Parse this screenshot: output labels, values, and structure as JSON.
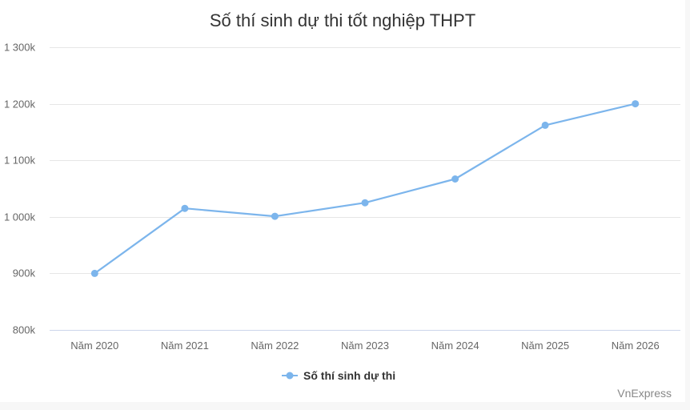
{
  "chart_data": {
    "type": "line",
    "title": "Số thí sinh dự thi tốt nghiệp THPT",
    "categories": [
      "Năm 2020",
      "Năm 2021",
      "Năm 2022",
      "Năm 2023",
      "Năm 2024",
      "Năm 2025",
      "Năm 2026"
    ],
    "series": [
      {
        "name": "Số thí sinh dự thi",
        "color": "#7cb5ec",
        "values": [
          900000,
          1015000,
          1001000,
          1025000,
          1067000,
          1162000,
          1200000
        ]
      }
    ],
    "y_ticks": [
      800000,
      900000,
      1000000,
      1100000,
      1200000,
      1300000
    ],
    "y_tick_labels": [
      "800k",
      "900k",
      "1 000k",
      "1 100k",
      "1 200k",
      "1 300k"
    ],
    "ylim": [
      800000,
      1300000
    ],
    "grid": true,
    "legend_position": "bottom-center",
    "credit": "VnExpress"
  }
}
